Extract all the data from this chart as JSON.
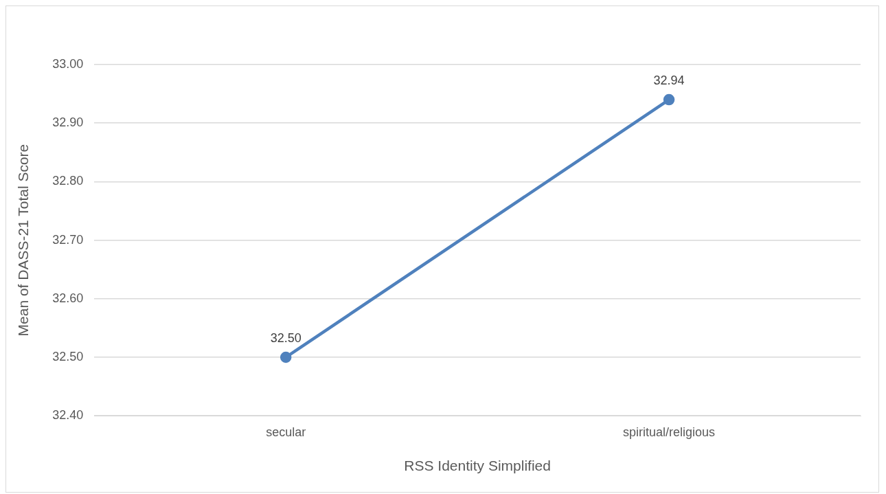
{
  "chart_data": {
    "type": "line",
    "xlabel": "RSS Identity Simplified",
    "ylabel": "Mean of DASS-21 Total Score",
    "categories": [
      "secular",
      "spiritual/religious"
    ],
    "series": [
      {
        "color": "#4f81bd",
        "values": [
          32.5,
          32.94
        ],
        "value_labels": [
          "32.50",
          "32.94"
        ]
      }
    ],
    "ylim": [
      32.4,
      33.0
    ],
    "yticks": [
      {
        "value": 32.4,
        "label": "32.40"
      },
      {
        "value": 32.5,
        "label": "32.50"
      },
      {
        "value": 32.6,
        "label": "32.60"
      },
      {
        "value": 32.7,
        "label": "32.70"
      },
      {
        "value": 32.8,
        "label": "32.80"
      },
      {
        "value": 32.9,
        "label": "32.90"
      },
      {
        "value": 33.0,
        "label": "33.00"
      }
    ],
    "grid": "y",
    "legend": false,
    "marker": "circle",
    "line_style": "solid"
  }
}
